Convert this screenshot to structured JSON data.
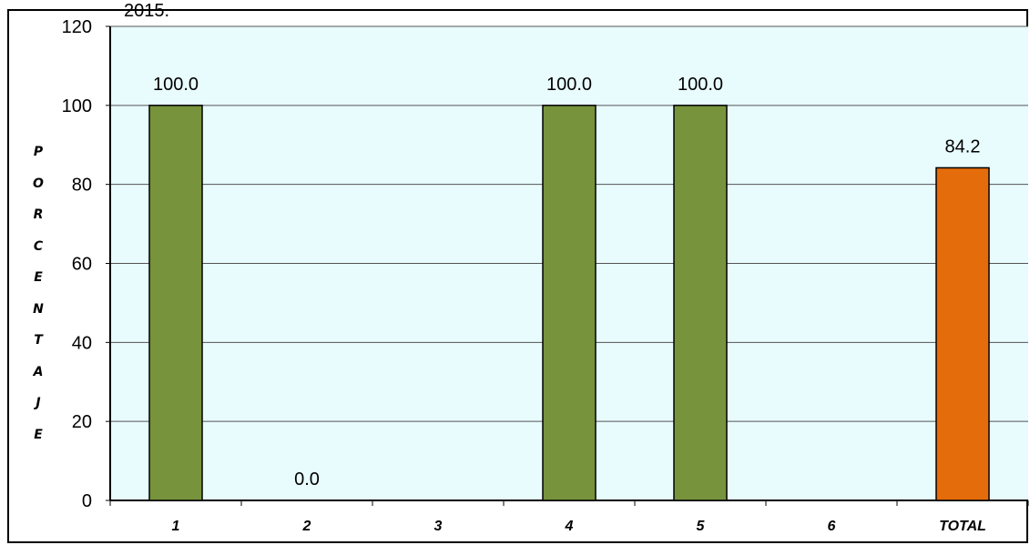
{
  "header_fragment": "2015.",
  "chart_data": {
    "type": "bar",
    "categories": [
      "1",
      "2",
      "3",
      "4",
      "5",
      "6",
      "TOTAL"
    ],
    "values": [
      100.0,
      0.0,
      null,
      100.0,
      100.0,
      null,
      84.2
    ],
    "data_labels": [
      "100.0",
      "0.0",
      "",
      "100.0",
      "100.0",
      "",
      "84.2"
    ],
    "title": "",
    "xlabel": "",
    "ylabel": "PORCENTAJE",
    "ylim": [
      0,
      120
    ],
    "yticks": [
      "0",
      "20",
      "40",
      "60",
      "80",
      "100",
      "120"
    ],
    "grid": true,
    "legend": "none",
    "colors": {
      "bar": "#77933C",
      "total_bar": "#E46C0A",
      "plot_bg": "#E8FBFD",
      "gridline": "#555555"
    }
  }
}
